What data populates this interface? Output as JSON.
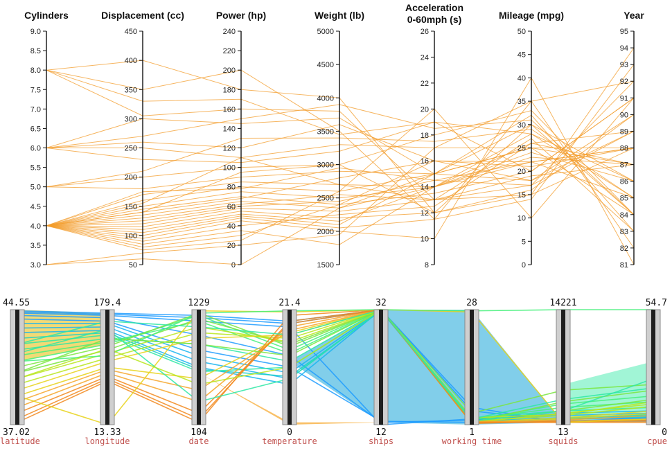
{
  "chart_data": [
    {
      "type": "parallel-coordinates",
      "axes": [
        {
          "key": "cyl",
          "title": "Cylinders",
          "min": 3.0,
          "max": 9.0,
          "ticks": [
            "3.0",
            "3.5",
            "4.0",
            "4.5",
            "5.0",
            "5.5",
            "6.0",
            "6.5",
            "7.0",
            "7.5",
            "8.0",
            "8.5",
            "9.0"
          ]
        },
        {
          "key": "disp",
          "title": "Displacement (cc)",
          "min": 50,
          "max": 450,
          "ticks": [
            "50",
            "100",
            "150",
            "200",
            "250",
            "300",
            "350",
            "400",
            "450"
          ]
        },
        {
          "key": "hp",
          "title": "Power (hp)",
          "min": 0,
          "max": 240,
          "ticks": [
            "0",
            "20",
            "40",
            "60",
            "80",
            "100",
            "120",
            "140",
            "160",
            "180",
            "200",
            "220",
            "240"
          ]
        },
        {
          "key": "wt",
          "title": "Weight (lb)",
          "min": 1500,
          "max": 5000,
          "ticks": [
            "1500",
            "2000",
            "2500",
            "3000",
            "3500",
            "4000",
            "4500",
            "5000"
          ]
        },
        {
          "key": "acc",
          "title": "Acceleration\n0-60mph (s)",
          "min": 8,
          "max": 26,
          "ticks": [
            "8",
            "10",
            "12",
            "14",
            "16",
            "18",
            "20",
            "22",
            "24",
            "26"
          ]
        },
        {
          "key": "mpg",
          "title": "Mileage (mpg)",
          "min": 0,
          "max": 50,
          "ticks": [
            "0",
            "5",
            "10",
            "15",
            "20",
            "25",
            "30",
            "35",
            "40",
            "45",
            "50"
          ]
        },
        {
          "key": "year",
          "title": "Year",
          "min": 81,
          "max": 95,
          "ticks": [
            "81",
            "82",
            "83",
            "84",
            "85",
            "86",
            "87",
            "88",
            "89",
            "90",
            "91",
            "92",
            "93",
            "94",
            "95"
          ]
        }
      ],
      "records": [
        [
          8,
          400,
          180,
          4000,
          12,
          15,
          94
        ],
        [
          8,
          350,
          200,
          3500,
          11.5,
          14,
          93
        ],
        [
          8,
          305,
          160,
          3800,
          13,
          17,
          92
        ],
        [
          6,
          300,
          145,
          3700,
          15,
          18,
          90
        ],
        [
          6,
          260,
          120,
          3600,
          16,
          22,
          88
        ],
        [
          6,
          250,
          110,
          3300,
          17,
          25,
          87
        ],
        [
          6,
          230,
          105,
          3200,
          19,
          28,
          85
        ],
        [
          5,
          200,
          100,
          3000,
          18,
          33,
          84
        ],
        [
          5,
          180,
          90,
          2900,
          15,
          30,
          86
        ],
        [
          4,
          170,
          85,
          2700,
          14,
          26,
          89
        ],
        [
          4,
          160,
          80,
          2600,
          15,
          25,
          88
        ],
        [
          4,
          150,
          75,
          2500,
          14,
          23,
          87
        ],
        [
          4,
          145,
          70,
          2400,
          13.5,
          20,
          91
        ],
        [
          4,
          140,
          68,
          2800,
          16,
          21,
          88
        ],
        [
          4,
          135,
          65,
          2350,
          14,
          24,
          86
        ],
        [
          4,
          130,
          62,
          2550,
          13,
          19,
          87
        ],
        [
          4,
          125,
          60,
          2450,
          14.5,
          22,
          85
        ],
        [
          4,
          120,
          58,
          2300,
          13,
          27,
          83
        ],
        [
          4,
          115,
          55,
          2200,
          12,
          30,
          84
        ],
        [
          4,
          110,
          52,
          2150,
          14,
          28,
          86
        ],
        [
          4,
          105,
          50,
          2100,
          15,
          32,
          83
        ],
        [
          4,
          100,
          48,
          2050,
          11.5,
          35,
          82
        ],
        [
          4,
          95,
          45,
          2000,
          10,
          40,
          81
        ],
        [
          4,
          90,
          40,
          2250,
          12.5,
          26,
          87
        ],
        [
          4,
          85,
          35,
          1800,
          14,
          22,
          88
        ],
        [
          4,
          80,
          30,
          2400,
          16,
          18,
          89
        ],
        [
          4,
          75,
          25,
          2600,
          20,
          10,
          91
        ],
        [
          4,
          140,
          95,
          3000,
          12,
          16,
          90
        ],
        [
          4,
          155,
          110,
          2700,
          13,
          15,
          88
        ],
        [
          4,
          175,
          78,
          2950,
          14.5,
          17,
          89
        ],
        [
          3,
          70,
          20,
          1950,
          17,
          35,
          92
        ],
        [
          3,
          60,
          0,
          2350,
          15,
          25,
          84
        ],
        [
          5,
          210,
          130,
          3400,
          17.5,
          29,
          85
        ],
        [
          6,
          270,
          150,
          3900,
          18.5,
          31,
          84
        ],
        [
          8,
          330,
          170,
          3450,
          19,
          20,
          91
        ]
      ]
    },
    {
      "type": "parallel-coordinates",
      "axes": [
        {
          "key": "latitude",
          "name": "latitude",
          "max": "44.55",
          "min": "37.02"
        },
        {
          "key": "longitude",
          "name": "longitude",
          "max": "179.4",
          "min": "13.33"
        },
        {
          "key": "date",
          "name": "date",
          "max": "1229",
          "min": "104"
        },
        {
          "key": "temperature",
          "name": "temperature",
          "max": "21.4",
          "min": "0"
        },
        {
          "key": "ships",
          "name": "ships",
          "max": "32",
          "min": "12"
        },
        {
          "key": "working_time",
          "name": "working time",
          "max": "28",
          "min": "1"
        },
        {
          "key": "squids",
          "name": "squids",
          "max": "14221",
          "min": "13"
        },
        {
          "key": "cpue",
          "name": "cpue",
          "max": "54.7",
          "min": "0"
        }
      ],
      "records_fraction": [
        [
          0.99,
          0.97,
          0.95,
          0.9,
          1.0,
          0.15,
          0.02,
          0.05
        ],
        [
          0.98,
          0.96,
          0.93,
          0.88,
          1.0,
          0.12,
          0.03,
          0.06
        ],
        [
          0.97,
          0.95,
          0.9,
          0.85,
          0.0,
          0.05,
          0.02,
          0.04
        ],
        [
          0.95,
          0.93,
          0.78,
          0.6,
          0.02,
          0.04,
          0.03,
          0.03
        ],
        [
          0.92,
          0.9,
          0.65,
          0.5,
          0.03,
          0.02,
          0.05,
          0.06
        ],
        [
          0.88,
          0.88,
          0.6,
          0.45,
          1.0,
          0.03,
          0.06,
          0.08
        ],
        [
          0.84,
          0.85,
          0.55,
          0.4,
          1.0,
          0.05,
          0.08,
          0.1
        ],
        [
          0.8,
          0.82,
          0.5,
          0.35,
          1.0,
          0.04,
          0.1,
          0.12
        ],
        [
          0.75,
          0.8,
          0.48,
          0.42,
          0.99,
          0.03,
          0.05,
          0.07
        ],
        [
          0.7,
          0.78,
          0.46,
          0.5,
          1.0,
          0.02,
          0.06,
          0.09
        ],
        [
          0.65,
          0.75,
          0.7,
          0.55,
          1.0,
          0.06,
          0.12,
          0.15
        ],
        [
          0.6,
          0.72,
          0.9,
          0.62,
          1.0,
          0.05,
          0.15,
          0.2
        ],
        [
          0.55,
          0.7,
          0.95,
          0.65,
          1.0,
          0.04,
          0.18,
          0.25
        ],
        [
          0.5,
          0.68,
          0.97,
          0.68,
          1.0,
          0.02,
          0.2,
          0.3
        ],
        [
          0.45,
          0.65,
          0.92,
          0.7,
          1.0,
          0.03,
          0.12,
          0.22
        ],
        [
          0.4,
          0.62,
          0.85,
          0.72,
          1.0,
          0.02,
          0.1,
          0.18
        ],
        [
          0.35,
          0.58,
          0.8,
          0.75,
          1.0,
          0.03,
          0.08,
          0.16
        ],
        [
          0.3,
          0.55,
          0.75,
          0.78,
          1.0,
          0.02,
          0.06,
          0.12
        ],
        [
          0.25,
          0.5,
          0.4,
          0.8,
          1.0,
          0.01,
          0.05,
          0.1
        ],
        [
          0.2,
          0.48,
          0.3,
          0.82,
          1.0,
          0.02,
          0.04,
          0.08
        ],
        [
          0.15,
          0.45,
          0.2,
          0.85,
          1.0,
          0.03,
          0.03,
          0.05
        ],
        [
          0.1,
          0.42,
          0.1,
          0.88,
          1.0,
          0.02,
          0.02,
          0.04
        ],
        [
          0.05,
          0.4,
          0.05,
          0.9,
          1.0,
          0.01,
          0.03,
          0.03
        ],
        [
          0.02,
          0.38,
          0.02,
          0.95,
          1.0,
          0.02,
          0.02,
          0.02
        ],
        [
          0.25,
          0.0,
          0.99,
          0.98,
          1.0,
          0.98,
          0.02,
          0.05
        ],
        [
          0.55,
          0.6,
          0.97,
          0.99,
          1.0,
          0.99,
          1.0,
          1.0
        ],
        [
          0.45,
          0.75,
          0.7,
          0.6,
          1.0,
          0.1,
          0.3,
          0.35
        ],
        [
          0.62,
          0.83,
          0.2,
          0.4,
          1.0,
          0.03,
          0.12,
          0.4
        ],
        [
          0.4,
          0.66,
          0.35,
          0.5,
          1.0,
          0.06,
          0.09,
          0.2
        ],
        [
          0.7,
          0.9,
          0.85,
          0.78,
          1.0,
          0.05,
          0.22,
          0.32
        ]
      ]
    }
  ]
}
